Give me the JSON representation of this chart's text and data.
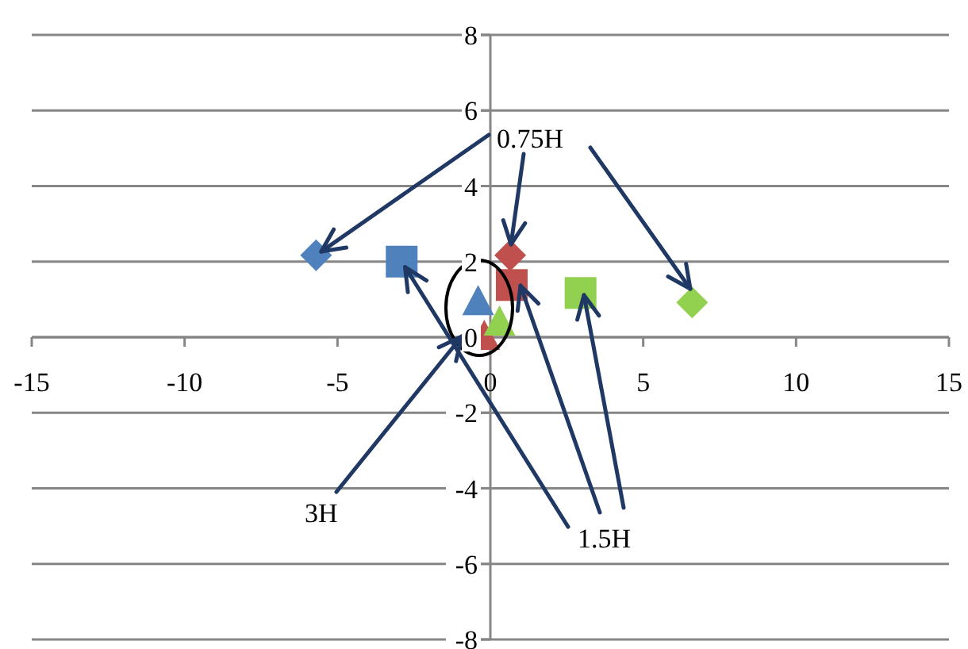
{
  "chart_data": {
    "type": "scatter",
    "xlim": [
      -15,
      15
    ],
    "ylim": [
      -8,
      8
    ],
    "xticks": [
      -15,
      -10,
      -5,
      0,
      5,
      10,
      15
    ],
    "yticks": [
      -8,
      -6,
      -4,
      -2,
      0,
      2,
      4,
      6,
      8
    ],
    "grid": "y",
    "series": [
      {
        "marker": "diamond",
        "x": [
          -5.7,
          0.65,
          6.6
        ],
        "values": [
          2.17,
          2.17,
          0.92
        ],
        "colors": [
          "#4f81bd",
          "#c0504d",
          "#92d050"
        ]
      },
      {
        "marker": "square",
        "x": [
          -2.9,
          0.7,
          2.95
        ],
        "values": [
          2.0,
          1.38,
          1.17
        ],
        "colors": [
          "#4f81bd",
          "#c0504d",
          "#92d050"
        ]
      },
      {
        "marker": "triangle",
        "x": [
          -0.4,
          -0.2,
          0.3
        ],
        "values": [
          0.92,
          0,
          0.38
        ],
        "colors": [
          "#4f81bd",
          "#c0504d",
          "#92d050"
        ]
      }
    ],
    "annotations": [
      {
        "text": "0.75H",
        "x": -5.7,
        "y": 2.17
      },
      {
        "text": "1.5H",
        "x": -2.9,
        "y": 2.0
      },
      "3H"
    ]
  }
}
